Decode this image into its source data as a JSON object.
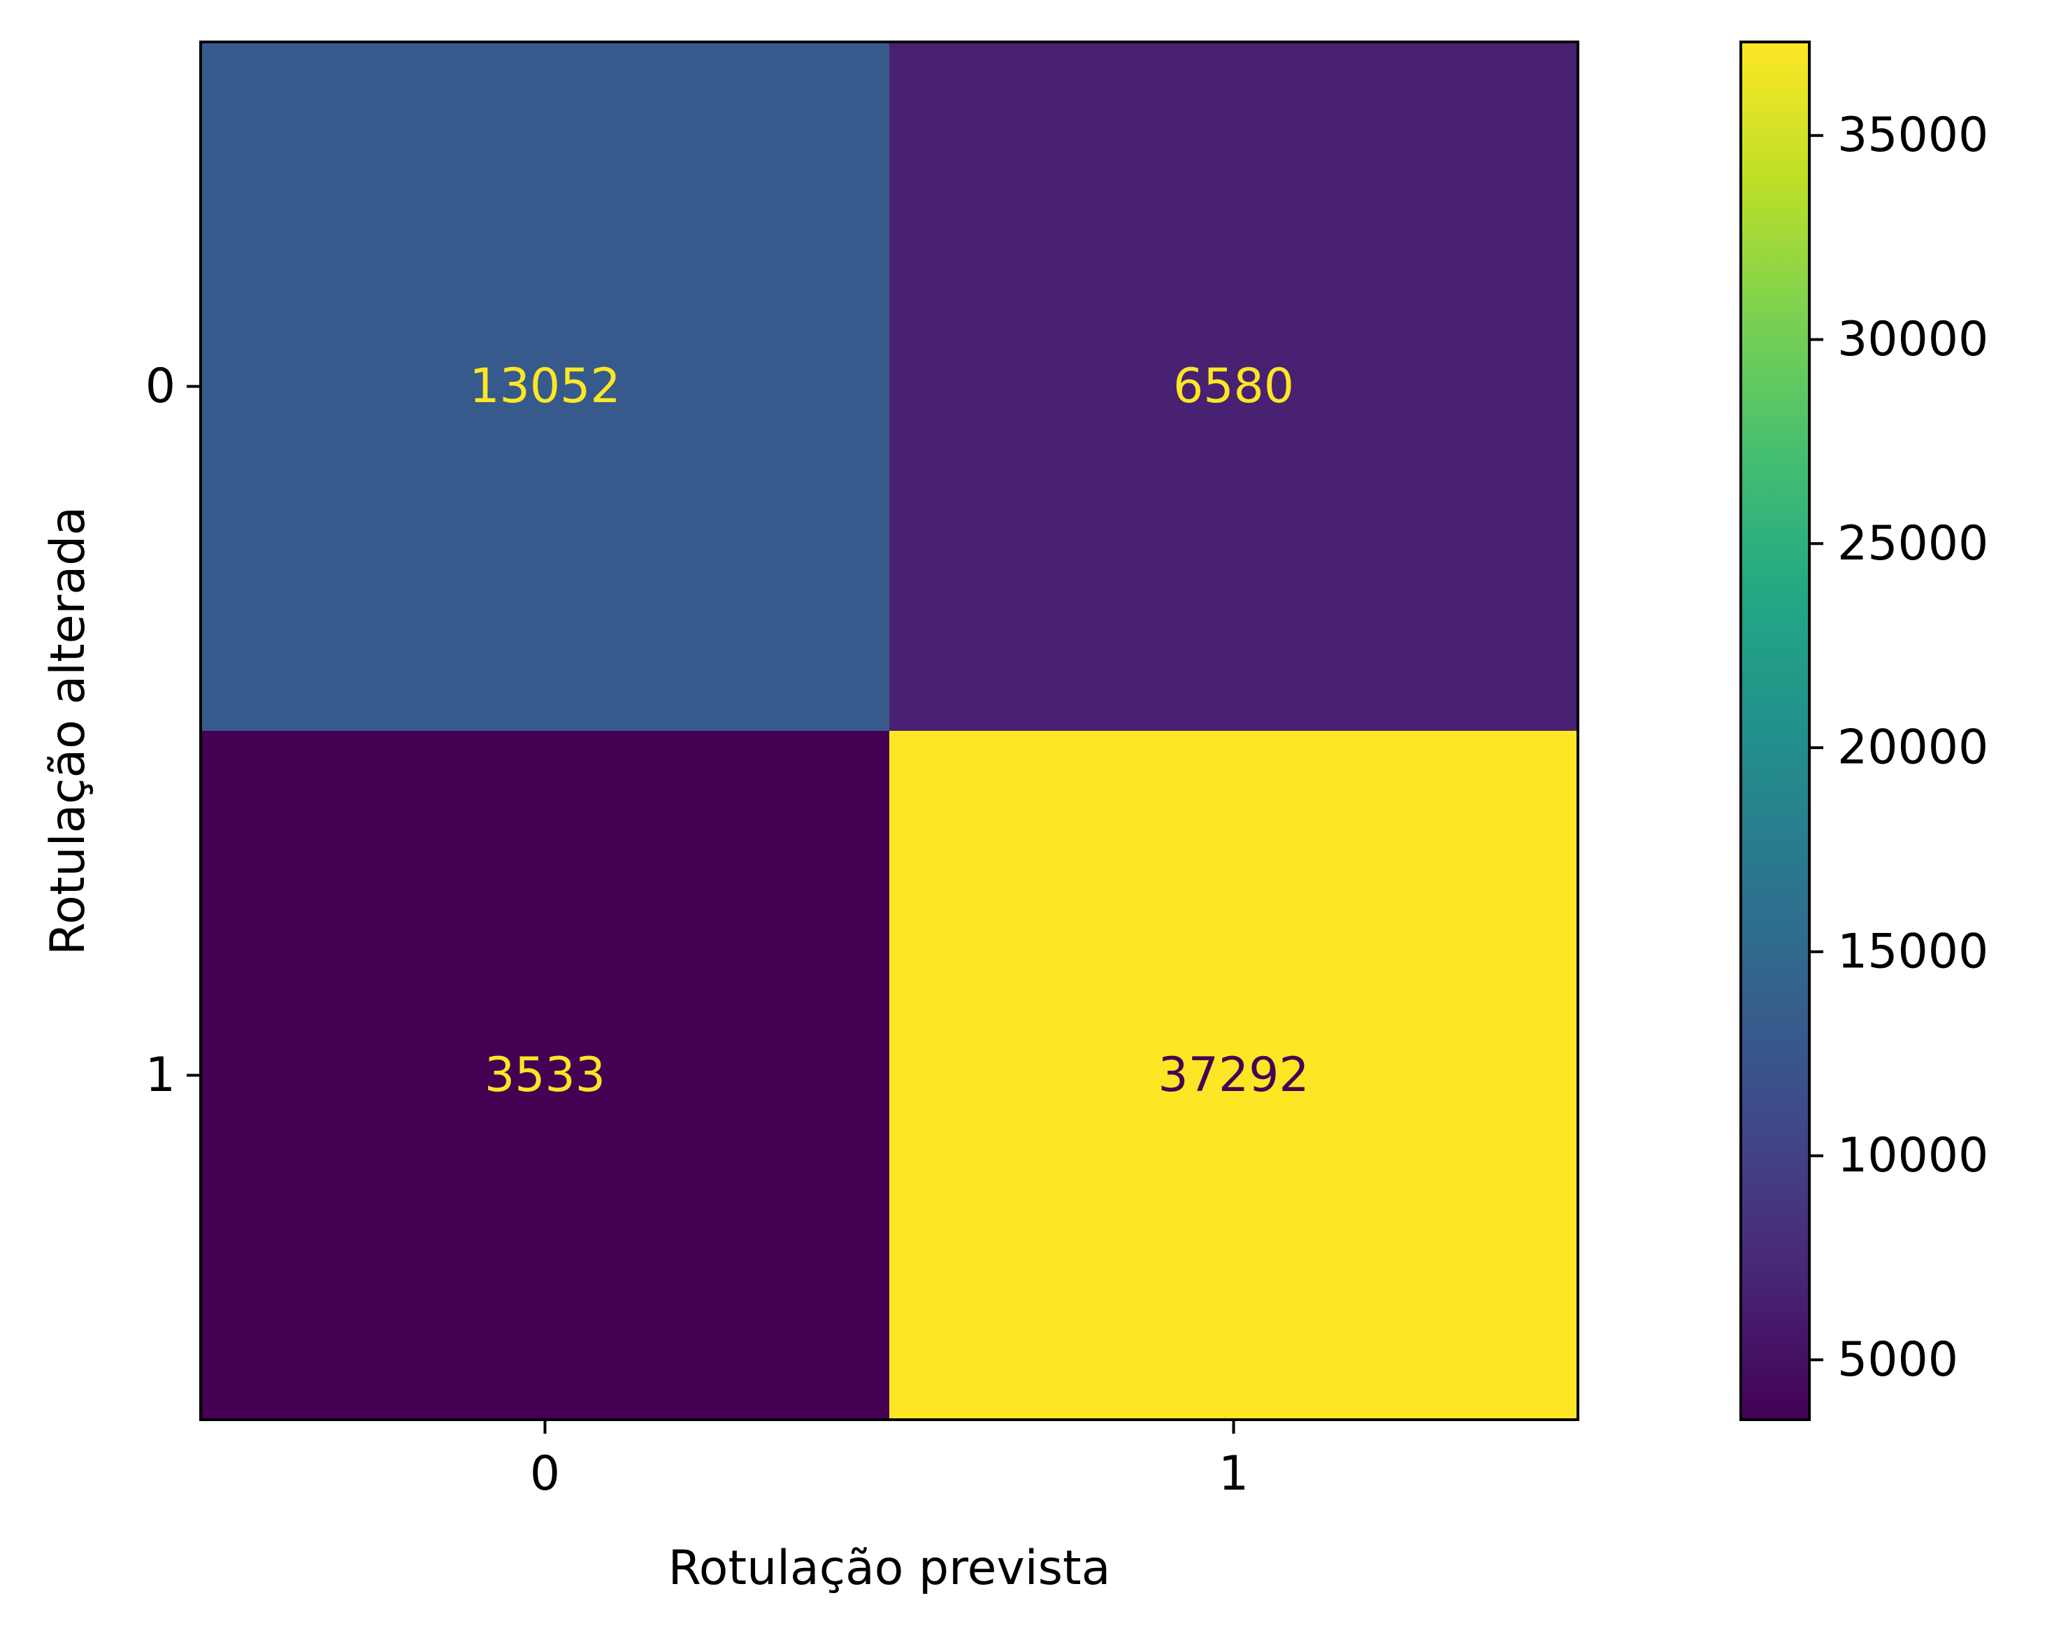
{
  "chart_data": {
    "type": "heatmap",
    "title": "",
    "xlabel": "Rotulação prevista",
    "ylabel": "Rotulação alterada",
    "x_categories": [
      "0",
      "1"
    ],
    "y_categories": [
      "0",
      "1"
    ],
    "matrix": [
      [
        13052,
        6580
      ],
      [
        3533,
        37292
      ]
    ],
    "colormap": "viridis",
    "colorbar": {
      "min": 3533,
      "max": 37292,
      "ticks": [
        5000,
        10000,
        15000,
        20000,
        25000,
        30000,
        35000
      ],
      "tick_labels": [
        "5000",
        "10000",
        "15000",
        "20000",
        "25000",
        "30000",
        "35000"
      ]
    },
    "cell_text_colors": {
      "dark_cell": "#fde725",
      "light_cell": "#440154"
    }
  }
}
